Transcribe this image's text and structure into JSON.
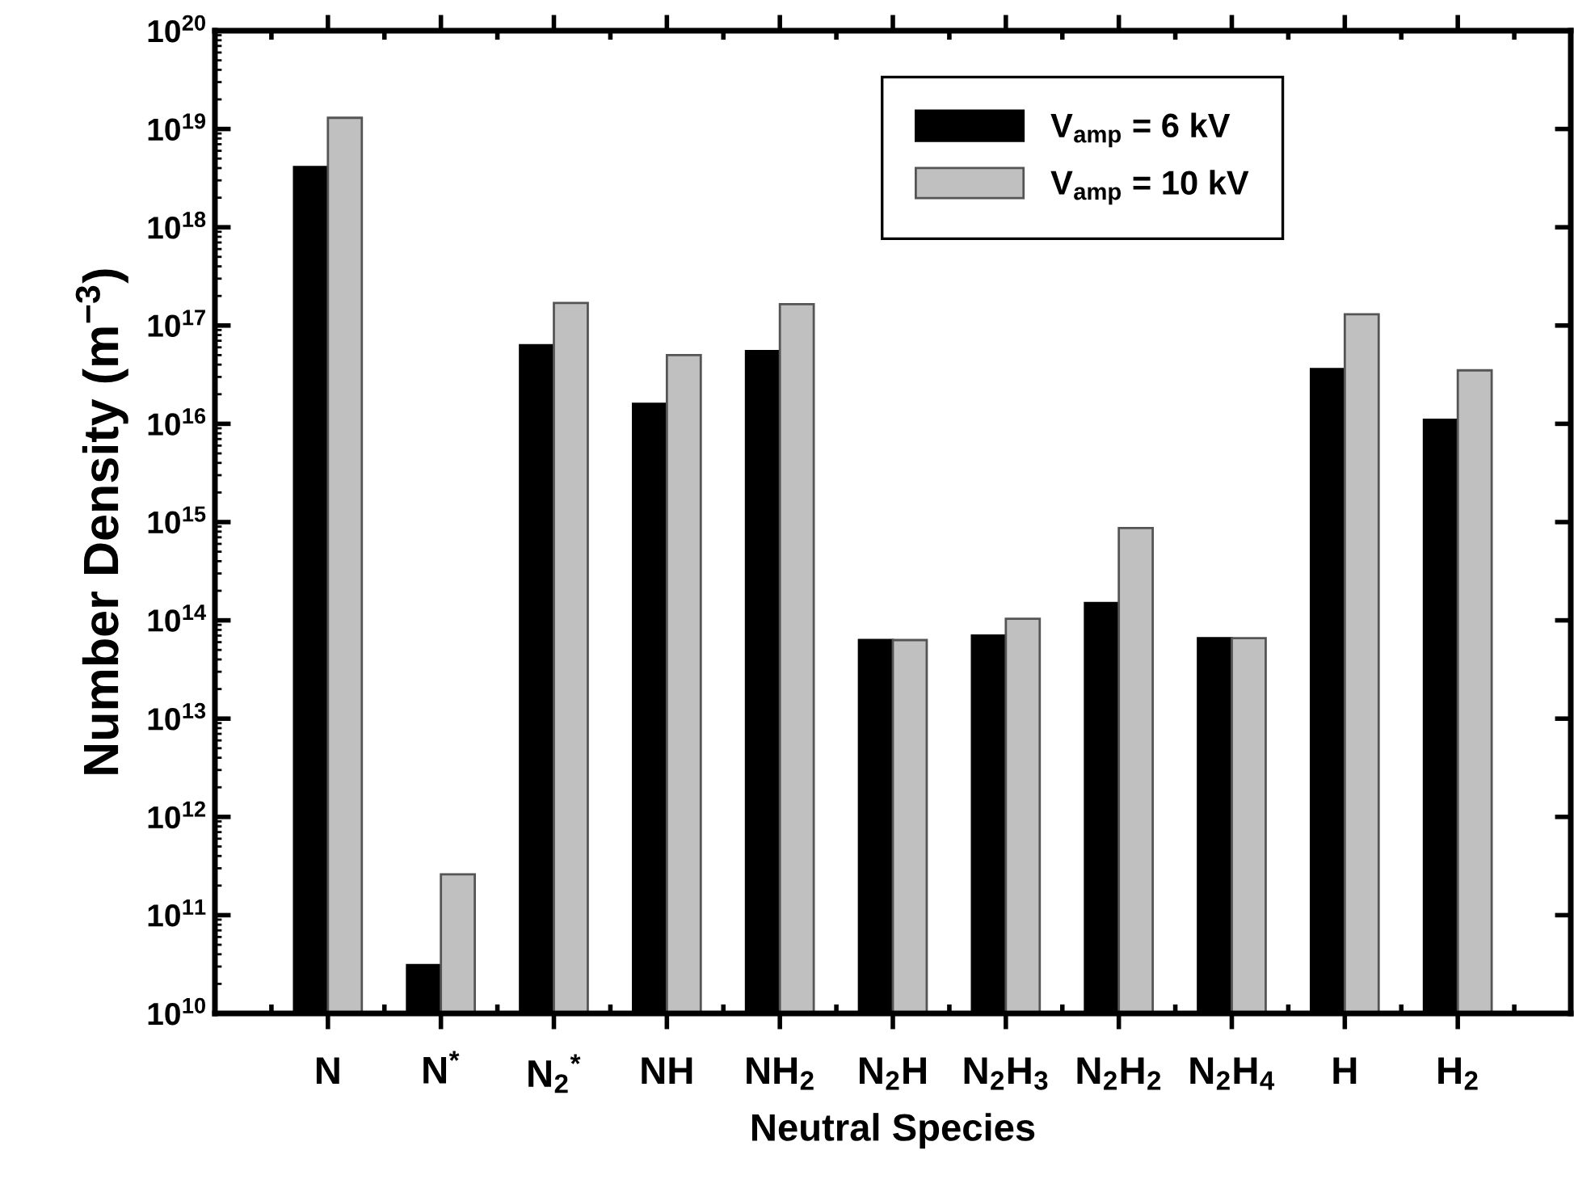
{
  "chart_data": {
    "type": "bar",
    "xlabel": "Neutral Species",
    "ylabel": "Number Density (m$^{−3}$)",
    "categories": [
      "N",
      "N$^{*}$",
      "N$_{2}$$^{*}$",
      "NH",
      "NH$_{2}$",
      "N$_{2}$H",
      "N$_{2}$H$_{3}$",
      "N$_{2}$H$_{2}$",
      "N$_{2}$H$_{4}$",
      "H",
      "H$_{2}$"
    ],
    "series": [
      {
        "name": "V$_{amp}$ = 6 kV",
        "color": "#000000",
        "values": [
          4.1e+18,
          31000000000.0,
          6.3e+16,
          1.6e+16,
          5.5e+16,
          63000000000000.0,
          70000000000000.0,
          150000000000000.0,
          66000000000000.0,
          3.6e+16,
          1.1e+16
        ]
      },
      {
        "name": "V$_{amp}$ = 10 kV",
        "color": "#c0c0c0",
        "values": [
          1.3e+19,
          260000000000.0,
          1.7e+17,
          5e+16,
          1.65e+17,
          63000000000000.0,
          104000000000000.0,
          870000000000000.0,
          66000000000000.0,
          1.3e+17,
          3.5e+16
        ]
      }
    ],
    "log": "y",
    "ylim": [
      10000000000.0,
      1e+20
    ],
    "yticks": [
      {
        "value": 10000000000.0,
        "label": "10$^{10}$"
      },
      {
        "value": 100000000000.0,
        "label": "10$^{11}$"
      },
      {
        "value": 1000000000000.0,
        "label": "10$^{12}$"
      },
      {
        "value": 10000000000000.0,
        "label": "10$^{13}$"
      },
      {
        "value": 100000000000000.0,
        "label": "10$^{14}$"
      },
      {
        "value": 1000000000000000.0,
        "label": "10$^{15}$"
      },
      {
        "value": 1e+16,
        "label": "10$^{16}$"
      },
      {
        "value": 1e+17,
        "label": "10$^{17}$"
      },
      {
        "value": 1e+18,
        "label": "10$^{18}$"
      },
      {
        "value": 1e+19,
        "label": "10$^{19}$"
      },
      {
        "value": 1e+20,
        "label": "10$^{20}$"
      }
    ],
    "grid": false,
    "legend": "top right"
  }
}
